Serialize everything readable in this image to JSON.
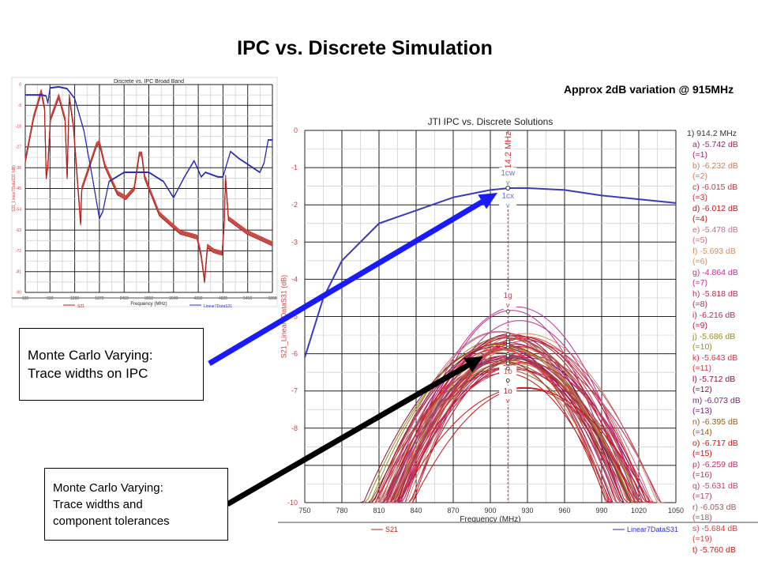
{
  "slide": {
    "title": "IPC vs. Discrete Simulation",
    "note": "Approx 2dB variation @ 915MHz",
    "box1": [
      "Monte Carlo Varying:",
      "Trace widths on IPC"
    ],
    "box2": [
      "Monte Carlo Varying:",
      "Trace widths and",
      "component tolerances"
    ],
    "colors": {
      "blue_arrow": "#1a1aff",
      "black_arrow": "#000000"
    }
  },
  "chart_data": [
    {
      "type": "line",
      "title": "Discrete vs. IPC Broad Band",
      "xlabel": "Frequency (MHz)",
      "ylabel": "S21_Linear7DataS31 (dB)",
      "xlim": [
        100,
        6000
      ],
      "ylim": [
        -90,
        0
      ],
      "grid": true,
      "xticks": [
        "100",
        "690",
        "1280",
        "1870",
        "2460",
        "3050",
        "3640",
        "4230",
        "4820",
        "5410",
        "6000"
      ],
      "yticks": [
        "0",
        "-9",
        "-18",
        "-27",
        "-36",
        "-45",
        "-54",
        "-63",
        "-72",
        "-81",
        "-90"
      ],
      "legend": [
        "S21",
        "Linear7DataS31"
      ],
      "series": [
        {
          "name": "Linear7DataS31",
          "color": "#2b2bb8",
          "x": [
            100,
            500,
            600,
            640,
            690,
            900,
            1100,
            1280,
            1500,
            1700,
            1870,
            1950,
            2100,
            2460,
            3050,
            3400,
            3640,
            3900,
            4130,
            4230,
            4300,
            4400,
            4700,
            4820,
            5000,
            5200,
            5700,
            5800,
            5900,
            6000
          ],
          "y": [
            -4.5,
            -4.5,
            -5,
            -8,
            -1.5,
            -1,
            -1.8,
            -6,
            -20,
            -40,
            -58,
            -55,
            -42,
            -38,
            -38,
            -42,
            -49,
            -40,
            -33,
            -37,
            -40,
            -38,
            -40,
            -40,
            -29,
            -32,
            -38,
            -34,
            -24,
            -24
          ]
        },
        {
          "name": "S21",
          "color": "#b22020",
          "x": [
            100,
            300,
            480,
            560,
            600,
            640,
            700,
            900,
            1050,
            1100,
            1150,
            1250,
            1380,
            1420,
            1450,
            1600,
            1800,
            1870,
            2000,
            2300,
            2500,
            2700,
            2820,
            2880,
            2950,
            3300,
            3800,
            4200,
            4300,
            4380,
            4450,
            4600,
            4800,
            4850,
            4880,
            4950,
            5400,
            6000
          ],
          "y": [
            -33,
            -14,
            -3,
            -10,
            -40,
            -35,
            -15,
            -5,
            -15,
            -40,
            -5,
            -18,
            -50,
            -60,
            -45,
            -37,
            -26,
            -25,
            -35,
            -47,
            -49,
            -45,
            -30,
            -30,
            -40,
            -56,
            -64,
            -66,
            -74,
            -85,
            -70,
            -72,
            -73,
            -60,
            -40,
            -58,
            -64,
            -69
          ]
        }
      ]
    },
    {
      "type": "line",
      "title": "JTI IPC vs. Discrete Solutions",
      "xlabel": "Frequency (MHz)",
      "ylabel": "S21_Linear7DataS31 (dB)",
      "xlim": [
        750,
        1050
      ],
      "ylim": [
        -10,
        0
      ],
      "grid": true,
      "xticks": [
        "750",
        "780",
        "810",
        "840",
        "870",
        "900",
        "930",
        "960",
        "990",
        "1020",
        "1050"
      ],
      "yticks": [
        "0",
        "-1",
        "-2",
        "-3",
        "-4",
        "-5",
        "-6",
        "-7",
        "-8",
        "-9",
        "-10"
      ],
      "legend": [
        "S21",
        "Linear7DataS31"
      ],
      "marker": {
        "freq": 914.2,
        "label": "914.2 MHz",
        "tags": [
          "1cw",
          "1cx",
          "1g",
          "1b",
          "1o"
        ],
        "tag_mark": "v"
      },
      "series": [
        {
          "name": "Linear7DataS31",
          "color": "#3a3ac0",
          "x": [
            750,
            765,
            780,
            810,
            840,
            870,
            900,
            915,
            930,
            960,
            990,
            1050
          ],
          "y": [
            -6.1,
            -4.5,
            -3.5,
            -2.5,
            -2.15,
            -1.8,
            -1.6,
            -1.55,
            -1.55,
            -1.6,
            -1.75,
            -1.95
          ]
        },
        {
          "name": "S21",
          "color": "#c02828",
          "readout_header": "1) 914.2 MHz",
          "readouts": [
            {
              "label": "a) -5.742 dB",
              "n": "(=1)",
              "value": -5.742,
              "color": "#a0206a"
            },
            {
              "label": "b) -6.232 dB",
              "n": "(=2)",
              "value": -6.232,
              "color": "#c0805a"
            },
            {
              "label": "c) -6.015 dB",
              "n": "(=3)",
              "value": -6.015,
              "color": "#d03040"
            },
            {
              "label": "d) -6.012 dB",
              "n": "(=4)",
              "value": -6.012,
              "color": "#b02020"
            },
            {
              "label": "e) -5.478 dB",
              "n": "(=5)",
              "value": -5.478,
              "color": "#c07080"
            },
            {
              "label": "f) -5.693 dB",
              "n": "(=6)",
              "value": -5.693,
              "color": "#d09060"
            },
            {
              "label": "g) -4.864 dB",
              "n": "(=7)",
              "value": -4.864,
              "color": "#c03090"
            },
            {
              "label": "h) -5.818 dB",
              "n": "(=8)",
              "value": -5.818,
              "color": "#b03050"
            },
            {
              "label": "i) -6.216 dB",
              "n": "(=9)",
              "value": -6.216,
              "color": "#c02050"
            },
            {
              "label": "j) -5.686 dB",
              "n": "(=10)",
              "value": -5.686,
              "color": "#9a8a20"
            },
            {
              "label": "k) -5.643 dB",
              "n": "(=11)",
              "value": -5.643,
              "color": "#e03040"
            },
            {
              "label": "l) -5.712 dB",
              "n": "(=12)",
              "value": -5.712,
              "color": "#901040"
            },
            {
              "label": "m) -6.073 dB",
              "n": "(=13)",
              "value": -6.073,
              "color": "#802080"
            },
            {
              "label": "n) -6.395 dB",
              "n": "(=14)",
              "value": -6.395,
              "color": "#906020"
            },
            {
              "label": "o) -6.717 dB",
              "n": "(=15)",
              "value": -6.717,
              "color": "#d01010"
            },
            {
              "label": "p) -6.259 dB",
              "n": "(=16)",
              "value": -6.259,
              "color": "#c03060"
            },
            {
              "label": "q) -5.631 dB",
              "n": "(=17)",
              "value": -5.631,
              "color": "#c04070"
            },
            {
              "label": "r) -6.053 dB",
              "n": "(=18)",
              "value": -6.053,
              "color": "#906060"
            },
            {
              "label": "s) -5.684 dB",
              "n": "(=19)",
              "value": -5.684,
              "color": "#e04040"
            },
            {
              "label": "t) -5.760 dB",
              "n": "",
              "value": -5.76,
              "color": "#c02020"
            }
          ]
        }
      ]
    }
  ]
}
